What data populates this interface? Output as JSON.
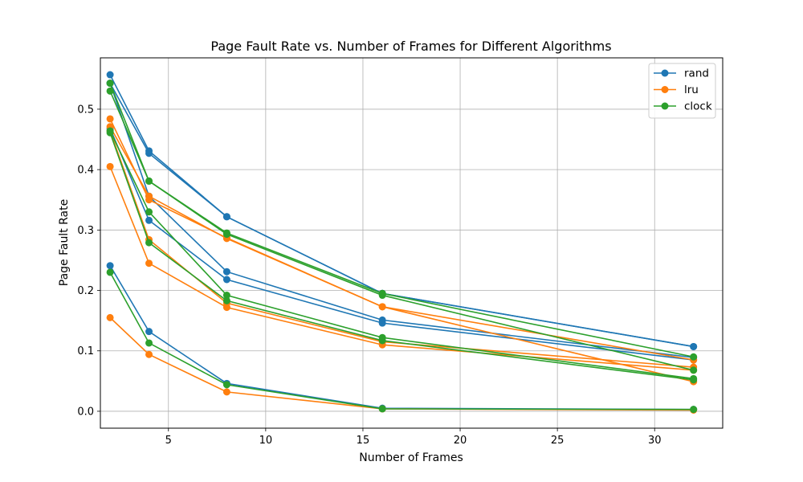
{
  "chart_data": {
    "type": "line",
    "title": "Page Fault Rate vs. Number of Frames for Different Algorithms",
    "xlabel": "Number of Frames",
    "ylabel": "Page Fault Rate",
    "xlim": [
      1.5,
      33.5
    ],
    "ylim": [
      -0.028,
      0.585
    ],
    "xticks": [
      5,
      10,
      15,
      20,
      25,
      30
    ],
    "yticks": [
      0.0,
      0.1,
      0.2,
      0.3,
      0.4,
      0.5
    ],
    "grid": true,
    "legend_position": "top-right",
    "x": [
      2,
      4,
      8,
      16,
      32
    ],
    "series": [
      {
        "name": "rand",
        "color": "#1f77b4",
        "runs": [
          [
            0.557,
            0.431,
            0.322,
            0.195,
            0.107
          ],
          [
            0.543,
            0.427,
            0.322,
            0.195,
            0.107
          ],
          [
            0.543,
            0.356,
            0.231,
            0.151,
            0.089
          ],
          [
            0.468,
            0.316,
            0.218,
            0.146,
            0.085
          ],
          [
            0.241,
            0.132,
            0.046,
            0.005,
            0.003
          ]
        ]
      },
      {
        "name": "lru",
        "color": "#ff7f0e",
        "runs": [
          [
            0.484,
            0.35,
            0.287,
            0.173,
            0.049
          ],
          [
            0.471,
            0.356,
            0.286,
            0.173,
            0.085
          ],
          [
            0.464,
            0.284,
            0.179,
            0.115,
            0.073
          ],
          [
            0.405,
            0.245,
            0.172,
            0.11,
            0.068
          ],
          [
            0.155,
            0.094,
            0.032,
            0.004,
            0.002
          ]
        ]
      },
      {
        "name": "clock",
        "color": "#2ca02c",
        "runs": [
          [
            0.543,
            0.381,
            0.295,
            0.195,
            0.09
          ],
          [
            0.53,
            0.381,
            0.293,
            0.192,
            0.068
          ],
          [
            0.464,
            0.33,
            0.192,
            0.122,
            0.054
          ],
          [
            0.461,
            0.279,
            0.183,
            0.117,
            0.052
          ],
          [
            0.23,
            0.113,
            0.044,
            0.004,
            0.003
          ]
        ]
      }
    ]
  }
}
